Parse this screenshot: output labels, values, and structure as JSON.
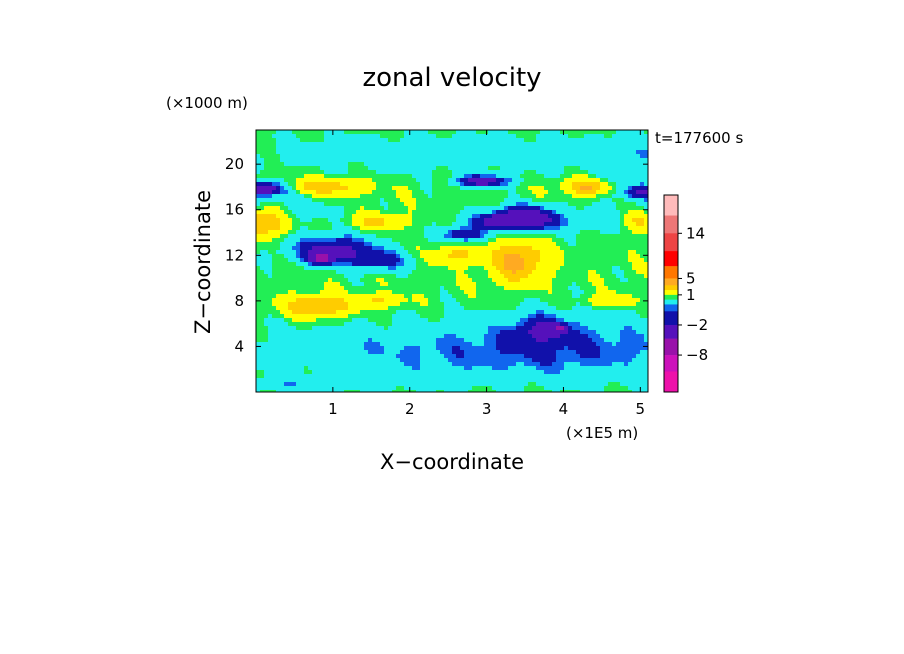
{
  "chart_data": {
    "type": "heatmap",
    "title": "zonal velocity",
    "xlabel": "X−coordinate",
    "ylabel": "Z−coordinate",
    "x_unit": "(×1E5 m)",
    "y_unit": "(×1000 m)",
    "time_label": "t=177600 s",
    "xlim": [
      0,
      5.1
    ],
    "ylim": [
      0,
      23
    ],
    "x_ticks": [
      {
        "value": 1,
        "label": "1"
      },
      {
        "value": 2,
        "label": "2"
      },
      {
        "value": 3,
        "label": "3"
      },
      {
        "value": 4,
        "label": "4"
      },
      {
        "value": 5,
        "label": "5"
      }
    ],
    "y_ticks": [
      {
        "value": 4,
        "label": "4"
      },
      {
        "value": 8,
        "label": "8"
      },
      {
        "value": 12,
        "label": "12"
      },
      {
        "value": 16,
        "label": "16"
      },
      {
        "value": 20,
        "label": "20"
      }
    ],
    "colorbar": {
      "levels": [
        -20,
        -14,
        -8,
        -5,
        -2,
        -1,
        -0.5,
        0.5,
        1,
        2,
        3,
        5,
        8,
        11,
        14,
        17,
        20
      ],
      "colors": [
        "#ee11aa",
        "#cc11bb",
        "#9911aa",
        "#5511bb",
        "#1111aa",
        "#1166ee",
        "#22eeee",
        "#22ee55",
        "#ffff00",
        "#ffcc00",
        "#ffaa22",
        "#ff7700",
        "#ff0000",
        "#ee4444",
        "#ee7777",
        "#ffbbbb"
      ],
      "labels": [
        {
          "value": 14,
          "label": "14"
        },
        {
          "value": 5,
          "label": "5"
        },
        {
          "value": 1,
          "label": "1"
        },
        {
          "value": -2,
          "label": "−2"
        },
        {
          "value": -8,
          "label": "−8"
        }
      ]
    },
    "field": {
      "background_value": 0.8,
      "features": [
        {
          "x": 2.2,
          "z": 3.5,
          "sx": 2.6,
          "sz": 2.5,
          "v": -1.2
        },
        {
          "x": 4.3,
          "z": 4.0,
          "sx": 1.6,
          "sz": 3.0,
          "v": -1.2
        },
        {
          "x": 0.4,
          "z": 0.6,
          "sx": 1.5,
          "sz": 0.7,
          "v": -0.9
        },
        {
          "x": 2.7,
          "z": 21.0,
          "sx": 2.8,
          "sz": 1.6,
          "v": -1.0
        },
        {
          "x": 0.1,
          "z": 16.0,
          "sx": 0.9,
          "sz": 1.6,
          "v": -0.9
        },
        {
          "x": 5.0,
          "z": 19.0,
          "sx": 0.6,
          "sz": 3.0,
          "v": -0.9
        },
        {
          "x": 4.2,
          "z": 15.0,
          "sx": 1.6,
          "sz": 1.0,
          "v": -1.0
        },
        {
          "x": 1.0,
          "z": 12.5,
          "sx": 0.55,
          "sz": 1.2,
          "v": -3.2
        },
        {
          "x": 0.85,
          "z": 11.7,
          "sx": 0.15,
          "sz": 0.4,
          "v": -6.0
        },
        {
          "x": 1.6,
          "z": 11.5,
          "sx": 0.4,
          "sz": 0.9,
          "v": -2.0
        },
        {
          "x": 0.1,
          "z": 17.8,
          "sx": 0.3,
          "sz": 0.6,
          "v": -4.0
        },
        {
          "x": 3.5,
          "z": 15.3,
          "sx": 0.35,
          "sz": 1.0,
          "v": -4.5
        },
        {
          "x": 3.1,
          "z": 15.0,
          "sx": 0.3,
          "sz": 0.7,
          "v": -2.2
        },
        {
          "x": 2.7,
          "z": 13.8,
          "sx": 0.25,
          "sz": 0.6,
          "v": -3.0
        },
        {
          "x": 2.95,
          "z": 18.5,
          "sx": 0.35,
          "sz": 0.5,
          "v": -3.5
        },
        {
          "x": 5.05,
          "z": 17.5,
          "sx": 0.25,
          "sz": 0.5,
          "v": -2.5
        },
        {
          "x": 3.7,
          "z": 5.5,
          "sx": 0.35,
          "sz": 1.3,
          "v": -2.0
        },
        {
          "x": 3.95,
          "z": 5.5,
          "sx": 0.08,
          "sz": 0.35,
          "v": -5.0
        },
        {
          "x": 0.8,
          "z": 7.5,
          "sx": 0.4,
          "sz": 0.9,
          "v": 2.6
        },
        {
          "x": 0.1,
          "z": 15.0,
          "sx": 0.3,
          "sz": 1.2,
          "v": 3.0
        },
        {
          "x": 0.9,
          "z": 18.0,
          "sx": 0.5,
          "sz": 0.7,
          "v": 2.0
        },
        {
          "x": 1.6,
          "z": 15.0,
          "sx": 0.35,
          "sz": 0.7,
          "v": 1.6
        },
        {
          "x": 3.4,
          "z": 11.5,
          "sx": 0.35,
          "sz": 1.8,
          "v": 2.6
        },
        {
          "x": 2.6,
          "z": 12.0,
          "sx": 0.3,
          "sz": 0.8,
          "v": 1.5
        },
        {
          "x": 4.3,
          "z": 18.0,
          "sx": 0.3,
          "sz": 0.7,
          "v": 2.4
        },
        {
          "x": 5.0,
          "z": 15.0,
          "sx": 0.25,
          "sz": 0.9,
          "v": 2.2
        },
        {
          "x": 1.6,
          "z": 8.0,
          "sx": 0.3,
          "sz": 0.6,
          "v": 1.4
        },
        {
          "x": 4.6,
          "z": 8.0,
          "sx": 0.3,
          "sz": 0.6,
          "v": 1.3
        }
      ]
    }
  }
}
